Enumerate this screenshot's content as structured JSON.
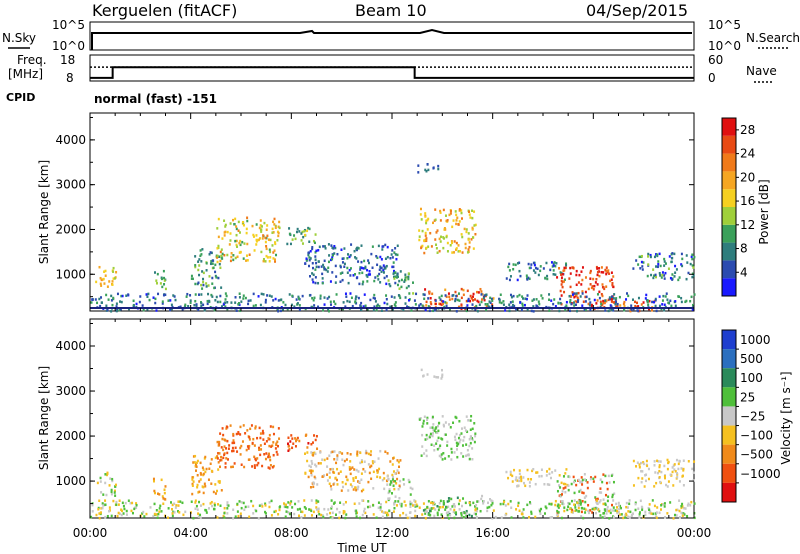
{
  "header": {
    "station": "Kerguelen (fitACF)",
    "beam": "Beam 10",
    "date": "04/Sep/2015"
  },
  "noise_panel": {
    "left_label": "N.Sky",
    "right_label": "N.Search",
    "left_ticks": [
      "10^5",
      "10^0"
    ],
    "right_ticks": [
      "10^5",
      "10^0"
    ],
    "line_color": "#000000"
  },
  "freq_panel": {
    "left_label_1": "Freq.",
    "left_label_2": "[MHz]",
    "right_label": "Nave",
    "left_ticks": [
      "18",
      "8"
    ],
    "right_ticks": [
      "60",
      "0"
    ],
    "freq_steps": [
      {
        "t": 0,
        "mhz": 9.2
      },
      {
        "t": 0.9,
        "mhz": 13.3
      },
      {
        "t": 12.9,
        "mhz": 9.2
      },
      {
        "t": 24,
        "mhz": 9.2
      }
    ],
    "nave_value": 32
  },
  "cpid": {
    "label": "CPID",
    "value": "normal (fast) -151"
  },
  "time_axis": {
    "ticks": [
      "00:00",
      "04:00",
      "08:00",
      "12:00",
      "16:00",
      "20:00",
      "00:00"
    ],
    "label": "Time UT"
  },
  "chart_data": [
    {
      "type": "heatmap",
      "name": "power",
      "ylabel": "Slant Range [km]",
      "yticks": [
        1000,
        2000,
        3000,
        4000
      ],
      "ylim": [
        180,
        4600
      ],
      "xlim_hours": [
        0,
        24
      ],
      "colorbar": {
        "label": "Power [dB]",
        "ticks": [
          4,
          8,
          12,
          16,
          20,
          24,
          28
        ],
        "range": [
          0,
          30
        ],
        "colors": [
          "#1a1aff",
          "#2b4bb0",
          "#2e7d7d",
          "#3aa05a",
          "#9fcf3a",
          "#f5d020",
          "#f5a623",
          "#f07a1a",
          "#e84a14",
          "#e01010"
        ]
      },
      "regions": [
        {
          "t0": 0.2,
          "t1": 1.0,
          "r0": 700,
          "r1": 1250,
          "v0": 14,
          "v1": 22
        },
        {
          "t0": 2.5,
          "t1": 3.0,
          "r0": 600,
          "r1": 1100,
          "v0": 8,
          "v1": 16
        },
        {
          "t0": 4.0,
          "t1": 5.2,
          "r0": 700,
          "r1": 1600,
          "v0": 4,
          "v1": 14
        },
        {
          "t0": 5.0,
          "t1": 7.5,
          "r0": 1300,
          "r1": 2300,
          "v0": 10,
          "v1": 22
        },
        {
          "t0": 7.8,
          "t1": 9.0,
          "r0": 1700,
          "r1": 2100,
          "v0": 6,
          "v1": 18
        },
        {
          "t0": 8.5,
          "t1": 12.3,
          "r0": 800,
          "r1": 1700,
          "v0": 2,
          "v1": 10
        },
        {
          "t0": 11.8,
          "t1": 12.8,
          "r0": 500,
          "r1": 1100,
          "v0": 6,
          "v1": 14
        },
        {
          "t0": 13.0,
          "t1": 14.0,
          "r0": 3300,
          "r1": 3500,
          "v0": 4,
          "v1": 8
        },
        {
          "t0": 13.0,
          "t1": 15.3,
          "r0": 1500,
          "r1": 2500,
          "v0": 12,
          "v1": 24
        },
        {
          "t0": 13.2,
          "t1": 16.0,
          "r0": 250,
          "r1": 700,
          "v0": 20,
          "v1": 30
        },
        {
          "t0": 16.5,
          "t1": 19.0,
          "r0": 900,
          "r1": 1300,
          "v0": 2,
          "v1": 12
        },
        {
          "t0": 18.5,
          "t1": 20.8,
          "r0": 300,
          "r1": 1200,
          "v0": 22,
          "v1": 30
        },
        {
          "t0": 20.0,
          "t1": 22.5,
          "r0": 200,
          "r1": 450,
          "v0": 18,
          "v1": 30
        },
        {
          "t0": 21.5,
          "t1": 24.0,
          "r0": 900,
          "r1": 1500,
          "v0": 2,
          "v1": 14
        },
        {
          "t0": 0.0,
          "t1": 24.0,
          "r0": 200,
          "r1": 600,
          "v0": 2,
          "v1": 12
        }
      ]
    },
    {
      "type": "heatmap",
      "name": "velocity",
      "ylabel": "Slant Range [km]",
      "yticks": [
        1000,
        2000,
        3000,
        4000
      ],
      "ylim": [
        180,
        4600
      ],
      "xlim_hours": [
        0,
        24
      ],
      "colorbar": {
        "label": "Velocity [m s⁻¹]",
        "ticks": [
          "1000",
          "500",
          "100",
          "25",
          "−25",
          "−100",
          "−500",
          "−1000"
        ],
        "colors": [
          "#1f3fcf",
          "#2b6fbf",
          "#2a8a5a",
          "#4fbf3a",
          "#c8c8c8",
          "#f5c020",
          "#f08a1a",
          "#f05010",
          "#e01010"
        ]
      },
      "regions": [
        {
          "t0": 0.2,
          "t1": 1.0,
          "r0": 700,
          "r1": 1250,
          "cls": [
            4,
            5,
            3
          ]
        },
        {
          "t0": 2.5,
          "t1": 3.0,
          "r0": 600,
          "r1": 1100,
          "cls": [
            5,
            6
          ]
        },
        {
          "t0": 4.0,
          "t1": 5.2,
          "r0": 700,
          "r1": 1600,
          "cls": [
            5,
            6
          ]
        },
        {
          "t0": 5.0,
          "t1": 7.5,
          "r0": 1300,
          "r1": 2300,
          "cls": [
            6,
            7
          ]
        },
        {
          "t0": 7.8,
          "t1": 9.0,
          "r0": 1700,
          "r1": 2100,
          "cls": [
            7,
            8,
            6
          ]
        },
        {
          "t0": 8.5,
          "t1": 12.3,
          "r0": 800,
          "r1": 1700,
          "cls": [
            4,
            5,
            6
          ]
        },
        {
          "t0": 11.8,
          "t1": 12.8,
          "r0": 500,
          "r1": 1100,
          "cls": [
            4,
            3
          ]
        },
        {
          "t0": 13.0,
          "t1": 14.0,
          "r0": 3300,
          "r1": 3500,
          "cls": [
            4
          ]
        },
        {
          "t0": 13.0,
          "t1": 15.3,
          "r0": 1500,
          "r1": 2500,
          "cls": [
            4,
            3
          ]
        },
        {
          "t0": 13.2,
          "t1": 16.0,
          "r0": 250,
          "r1": 700,
          "cls": [
            3,
            2,
            4
          ]
        },
        {
          "t0": 16.5,
          "t1": 19.0,
          "r0": 900,
          "r1": 1300,
          "cls": [
            4,
            5
          ]
        },
        {
          "t0": 18.5,
          "t1": 20.8,
          "r0": 300,
          "r1": 1200,
          "cls": [
            4,
            3,
            7
          ]
        },
        {
          "t0": 20.0,
          "t1": 22.5,
          "r0": 200,
          "r1": 450,
          "cls": [
            3,
            4
          ]
        },
        {
          "t0": 21.5,
          "t1": 24.0,
          "r0": 900,
          "r1": 1500,
          "cls": [
            4,
            5
          ]
        },
        {
          "t0": 0.0,
          "t1": 24.0,
          "r0": 200,
          "r1": 600,
          "cls": [
            5,
            4,
            3
          ]
        }
      ]
    }
  ]
}
